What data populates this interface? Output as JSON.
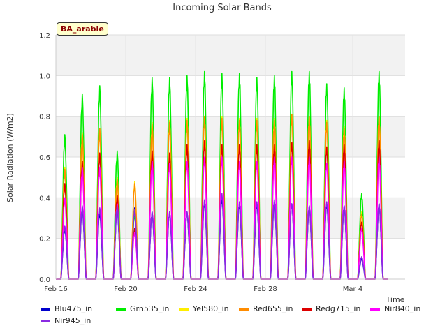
{
  "chart_data": {
    "type": "line",
    "title": "Incoming Solar Bands",
    "xlabel": "Time",
    "ylabel": "Solar Radiation (W/m2)",
    "annotation": "BA_arable",
    "ylim": [
      0,
      1.2
    ],
    "yticks": [
      "0.0",
      "0.2",
      "0.4",
      "0.6",
      "0.8",
      "1.0",
      "1.2"
    ],
    "xlim": [
      "2024-02-16",
      "2024-03-07"
    ],
    "xticks": [
      {
        "date": "2024-02-16",
        "label": "Feb 16"
      },
      {
        "date": "2024-02-20",
        "label": "Feb 20"
      },
      {
        "date": "2024-02-24",
        "label": "Feb 24"
      },
      {
        "date": "2024-02-28",
        "label": "Feb 28"
      },
      {
        "date": "2024-03-04",
        "label": "Mar 4"
      }
    ],
    "grid": true,
    "legend_position": "bottom",
    "days": [
      "2024-02-16",
      "2024-02-17",
      "2024-02-18",
      "2024-02-19",
      "2024-02-20",
      "2024-02-21",
      "2024-02-22",
      "2024-02-23",
      "2024-02-24",
      "2024-02-25",
      "2024-02-26",
      "2024-02-27",
      "2024-02-28",
      "2024-02-29",
      "2024-03-01",
      "2024-03-02",
      "2024-03-03",
      "2024-03-04",
      "2024-03-05"
    ],
    "series": [
      {
        "name": "Blu475_in",
        "color": "#0000cc",
        "daily_peaks": [
          0.25,
          0.35,
          0.33,
          0.35,
          0.35,
          0.33,
          0.33,
          0.33,
          0.38,
          0.4,
          0.37,
          0.37,
          0.38,
          0.37,
          0.36,
          0.37,
          0.36,
          0.1,
          0.37
        ]
      },
      {
        "name": "Grn535_in",
        "color": "#00ee00",
        "daily_peaks": [
          0.71,
          0.91,
          0.95,
          0.63,
          0.32,
          0.99,
          0.99,
          1.0,
          1.02,
          1.01,
          1.01,
          0.99,
          1.0,
          1.02,
          1.02,
          0.96,
          0.94,
          0.42,
          1.02
        ]
      },
      {
        "name": "Yel580_in",
        "color": "#ffee00",
        "daily_peaks": [
          0.55,
          0.72,
          0.74,
          0.5,
          0.48,
          0.77,
          0.78,
          0.79,
          0.8,
          0.8,
          0.79,
          0.79,
          0.79,
          0.81,
          0.8,
          0.78,
          0.75,
          0.33,
          0.8
        ]
      },
      {
        "name": "Red655_in",
        "color": "#ff8c00",
        "daily_peaks": [
          0.54,
          0.71,
          0.74,
          0.49,
          0.47,
          0.76,
          0.77,
          0.78,
          0.8,
          0.79,
          0.78,
          0.78,
          0.78,
          0.81,
          0.8,
          0.77,
          0.74,
          0.32,
          0.8
        ]
      },
      {
        "name": "Redg715_in",
        "color": "#dd0000",
        "daily_peaks": [
          0.47,
          0.58,
          0.62,
          0.41,
          0.25,
          0.63,
          0.62,
          0.66,
          0.68,
          0.66,
          0.66,
          0.66,
          0.66,
          0.67,
          0.68,
          0.65,
          0.66,
          0.28,
          0.68
        ]
      },
      {
        "name": "Nir840_in",
        "color": "#ff00ff",
        "daily_peaks": [
          0.4,
          0.55,
          0.55,
          0.37,
          0.23,
          0.58,
          0.57,
          0.58,
          0.6,
          0.6,
          0.58,
          0.58,
          0.6,
          0.6,
          0.6,
          0.57,
          0.58,
          0.25,
          0.6
        ]
      },
      {
        "name": "Nir945_in",
        "color": "#8a2be2",
        "daily_peaks": [
          0.26,
          0.36,
          0.35,
          0.36,
          0.34,
          0.33,
          0.33,
          0.33,
          0.39,
          0.42,
          0.38,
          0.38,
          0.39,
          0.37,
          0.36,
          0.38,
          0.36,
          0.11,
          0.37
        ]
      }
    ]
  }
}
